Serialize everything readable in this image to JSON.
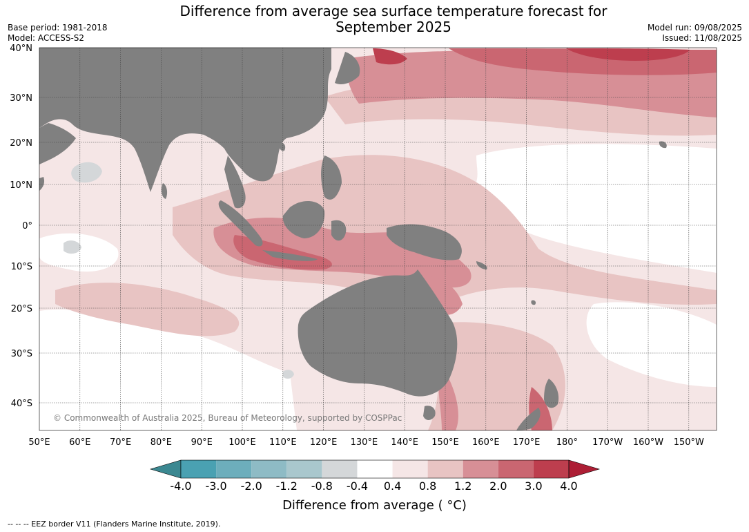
{
  "title": {
    "line1": "Difference from average sea surface temperature forecast for",
    "line2": "September 2025"
  },
  "meta_left": {
    "base_period": "Base period: 1981-2018",
    "model": "Model: ACCESS-S2"
  },
  "meta_right": {
    "model_run": "Model run: 09/08/2025",
    "issued": "Issued: 11/08/2025"
  },
  "lat_labels": [
    "40°N",
    "30°N",
    "20°N",
    "10°N",
    "0°",
    "10°S",
    "20°S",
    "30°S",
    "40°S"
  ],
  "lon_labels": [
    "50°E",
    "60°E",
    "70°E",
    "80°E",
    "90°E",
    "100°E",
    "110°E",
    "120°E",
    "130°E",
    "140°E",
    "150°E",
    "160°E",
    "170°E",
    "180°",
    "170°W",
    "160°W",
    "150°W"
  ],
  "copyright": "© Commonwealth of Australia 2025, Bureau of Meteorology, supported by COSPPac",
  "colorbar": {
    "labels": [
      "-4.0",
      "-3.0",
      "-2.0",
      "-1.2",
      "-0.8",
      "-0.4",
      "0.4",
      "0.8",
      "1.2",
      "2.0",
      "3.0",
      "4.0"
    ],
    "colors": [
      "#4aa1b2",
      "#6daebc",
      "#8ebbc5",
      "#a9c7cd",
      "#d4d7d9",
      "#ffffff",
      "#f5e6e6",
      "#e8c4c3",
      "#d78f96",
      "#ca6671",
      "#bd3e4e"
    ],
    "under_color": "#3b8891",
    "over_color": "#ad1e35",
    "title": "Difference from average ( °C)"
  },
  "colors": {
    "land": "#808080",
    "ocean_base": "#f5e6e6",
    "warm_08": "#e8c4c3",
    "warm_12": "#d78f96",
    "warm_20": "#ca6671",
    "warm_30": "#bd3e4e",
    "neutral": "#ffffff",
    "cool_04": "#d4d7d9"
  },
  "footer": "-- -- -- EEZ border V11 (Flanders Marine Institute, 2019)."
}
